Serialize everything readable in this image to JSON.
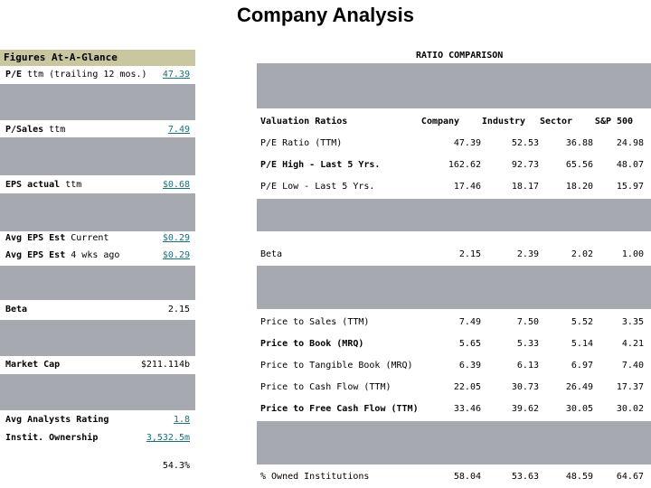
{
  "title": "Company Analysis",
  "glance": {
    "header": "Figures At-A-Glance",
    "items": [
      {
        "name_bold": "P/E",
        "name_rest": " ttm (trailing 12 mos.)",
        "value": "47.39",
        "link": true
      },
      {
        "name_bold": "P/Sales",
        "name_rest": " ttm",
        "value": "7.49",
        "link": true
      },
      {
        "name_bold": "EPS actual",
        "name_rest": " ttm",
        "value": "$0.68",
        "link": true
      },
      {
        "name_bold": "Avg EPS Est",
        "name_rest": " Current",
        "value": "$0.29",
        "link": true
      },
      {
        "name_bold": "Avg EPS Est",
        "name_rest": " 4 wks ago",
        "value": "$0.29",
        "link": true
      },
      {
        "name_bold": "Beta",
        "name_rest": "",
        "value": "2.15",
        "link": false
      },
      {
        "name_bold": "Market Cap",
        "name_rest": "",
        "value": "$211.114b",
        "link": false
      },
      {
        "name_bold": "Avg Analysts Rating",
        "name_rest": "",
        "value": "1.8",
        "link": true
      },
      {
        "name_bold": "Instit. Ownership",
        "name_rest": "",
        "value": "3,532.5m",
        "link": true
      },
      {
        "name_bold": "",
        "name_rest": "",
        "value": "54.3%",
        "link": false
      }
    ]
  },
  "ratio": {
    "title": "RATIO COMPARISON",
    "headers": [
      "Valuation Ratios",
      "Company",
      "Industry",
      "Sector",
      "S&P 500"
    ],
    "rows": [
      {
        "name": "P/E Ratio (TTM)",
        "bold": false,
        "values": [
          "47.39",
          "52.53",
          "36.88",
          "24.98"
        ]
      },
      {
        "name": "P/E High - Last 5 Yrs.",
        "bold": true,
        "values": [
          "162.62",
          "92.73",
          "65.56",
          "48.07"
        ]
      },
      {
        "name": "P/E Low - Last 5 Yrs.",
        "bold": false,
        "values": [
          "17.46",
          "18.17",
          "18.20",
          "15.97"
        ]
      },
      {
        "name": "Beta",
        "bold": false,
        "values": [
          "2.15",
          "2.39",
          "2.02",
          "1.00"
        ]
      },
      {
        "name": "Price to Sales (TTM)",
        "bold": false,
        "values": [
          "7.49",
          "7.50",
          "5.52",
          "3.35"
        ]
      },
      {
        "name": "Price to Book (MRQ)",
        "bold": true,
        "values": [
          "5.65",
          "5.33",
          "5.14",
          "4.21"
        ]
      },
      {
        "name": "Price to Tangible Book (MRQ)",
        "bold": false,
        "values": [
          "6.39",
          "6.13",
          "6.97",
          "7.40"
        ]
      },
      {
        "name": "Price to Cash Flow (TTM)",
        "bold": false,
        "values": [
          "22.05",
          "30.73",
          "26.49",
          "17.37"
        ]
      },
      {
        "name": "Price to Free Cash Flow (TTM)",
        "bold": true,
        "values": [
          "33.46",
          "39.62",
          "30.05",
          "30.02"
        ]
      },
      {
        "name": "% Owned Institutions",
        "bold": false,
        "values": [
          "58.04",
          "53.63",
          "48.59",
          "64.67"
        ]
      }
    ]
  }
}
